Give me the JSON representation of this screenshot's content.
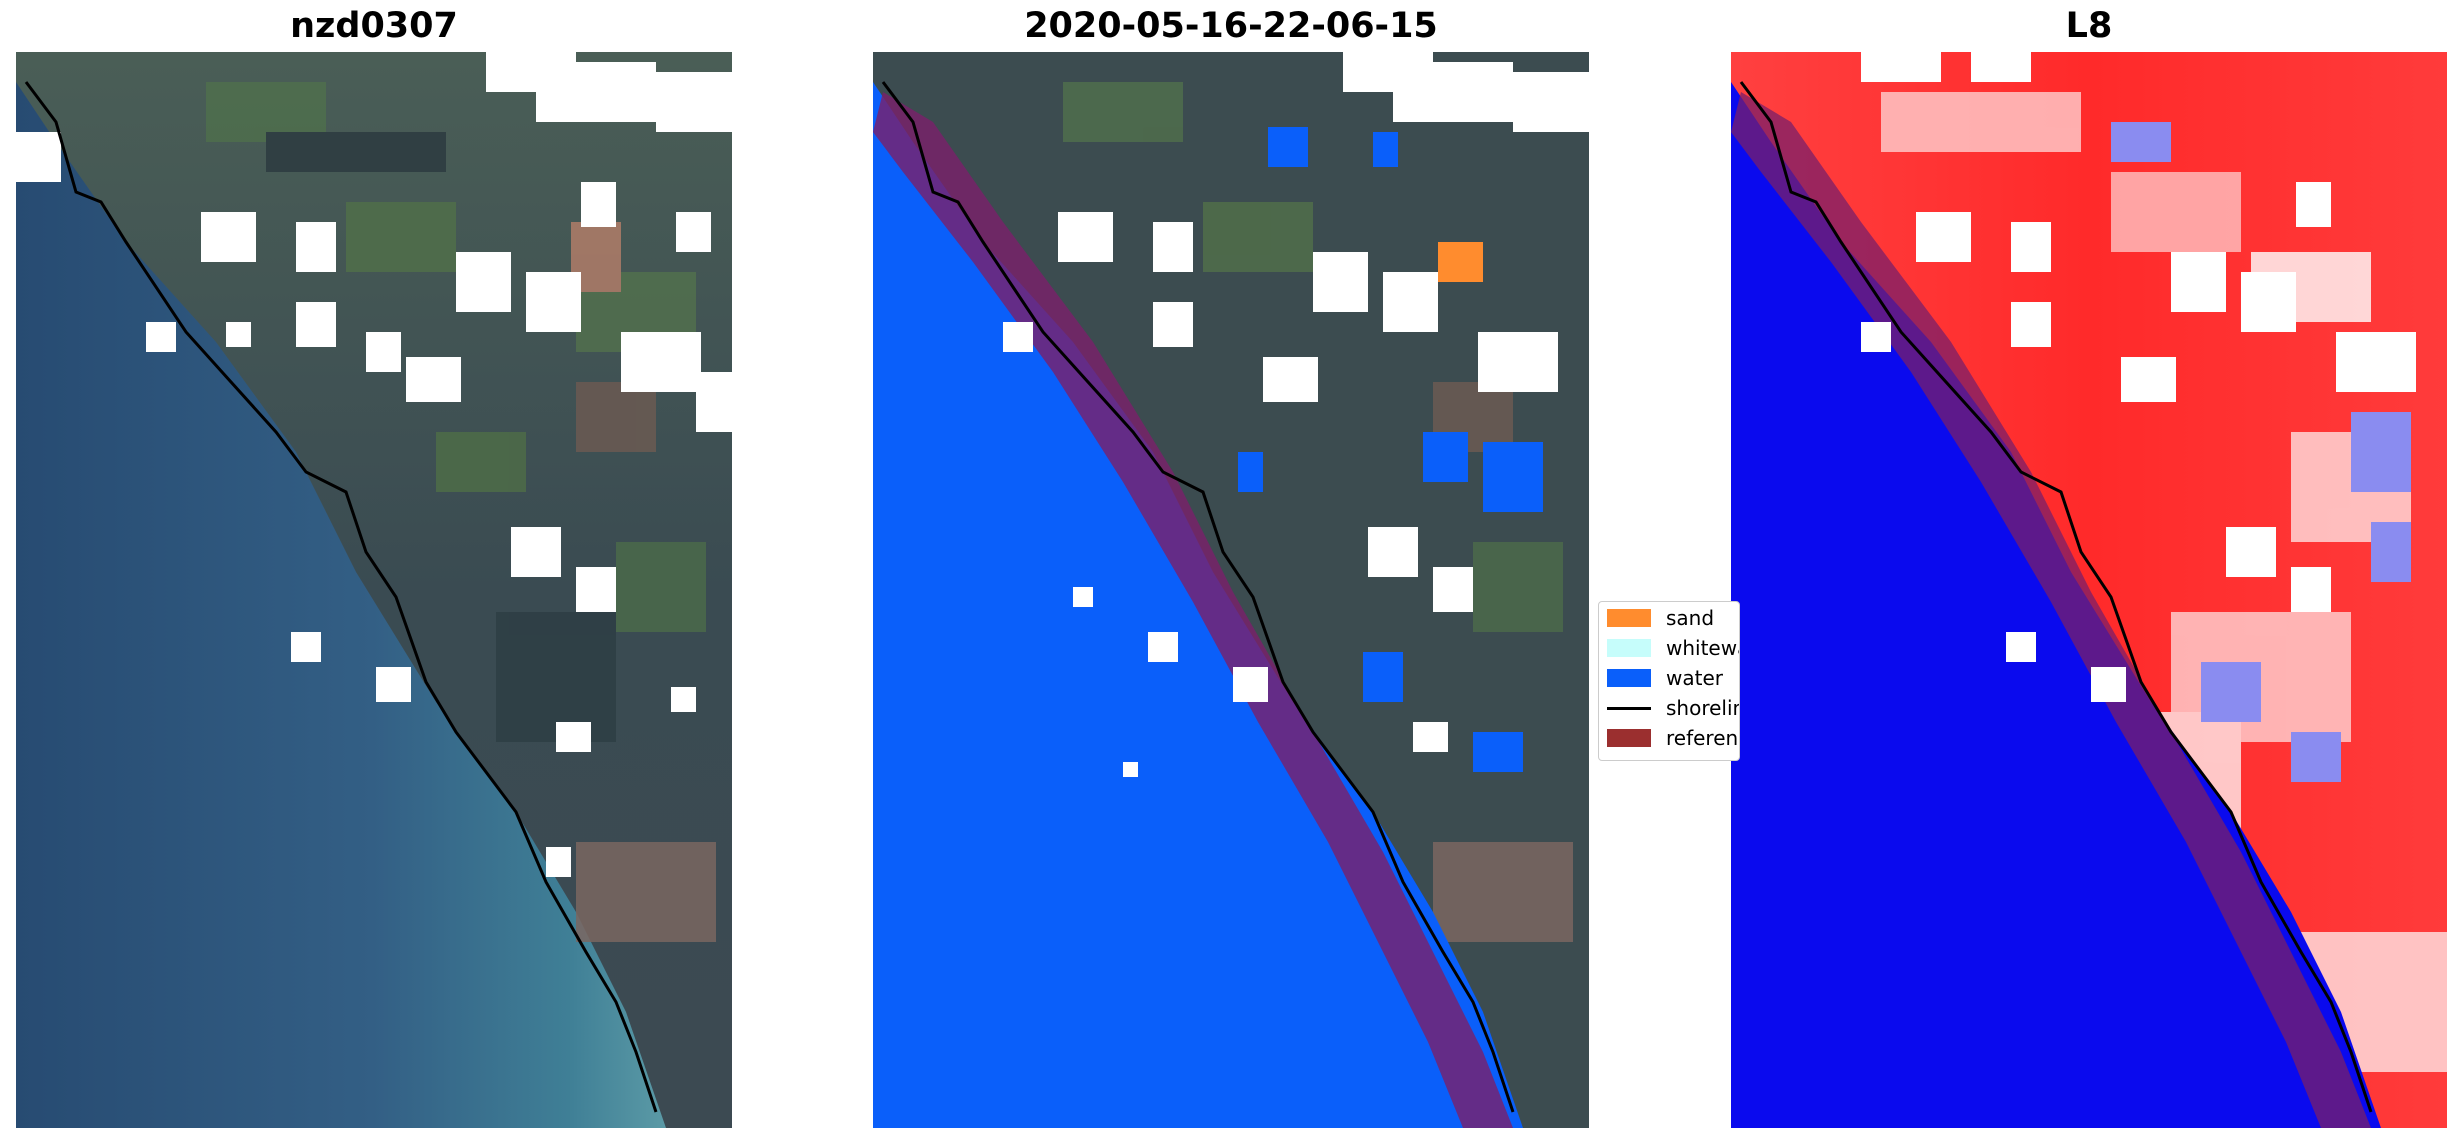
{
  "panels": [
    {
      "title": "nzd0307"
    },
    {
      "title": "2020-05-16-22-06-15"
    },
    {
      "title": "L8"
    }
  ],
  "legend": {
    "items": [
      {
        "label": "sand",
        "color": "#ff8c2e"
      },
      {
        "label": "whitewater",
        "color": "#c6fdfb"
      },
      {
        "label": "water",
        "color": "#0a5ffa"
      },
      {
        "label": "shoreline",
        "color": "#000000"
      },
      {
        "label": "reference shoreline buffer",
        "color": "#9b2f2f"
      }
    ]
  },
  "colors": {
    "sea_rgb": "#3a6e8e",
    "land_rgb": "#3c4c50",
    "water_class": "#0a5ffa",
    "sand_class": "#ff8c2e",
    "buffer": "#7a1f6a",
    "index_water": "#0a0aee",
    "index_land": "#ff2a2a"
  }
}
